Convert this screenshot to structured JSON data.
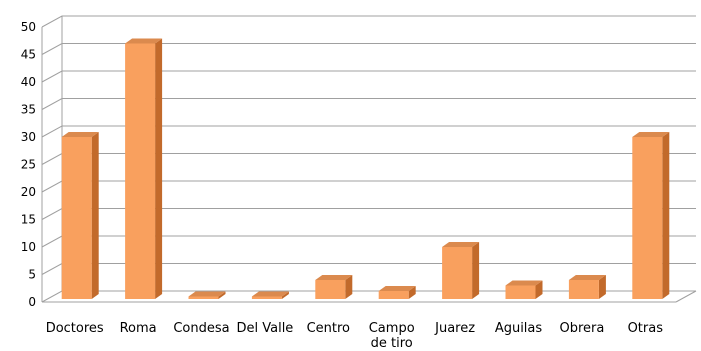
{
  "chart_data": {
    "type": "bar",
    "title": "",
    "xlabel": "",
    "ylabel": "",
    "ylim": [
      0,
      50
    ],
    "yticks": [
      0,
      5,
      10,
      15,
      20,
      25,
      30,
      35,
      40,
      45,
      50
    ],
    "grid": true,
    "legend": "none",
    "style": "3d",
    "categories": [
      [
        "Doctores"
      ],
      [
        "Roma"
      ],
      [
        "Condesa"
      ],
      [
        "Del Valle"
      ],
      [
        "Centro"
      ],
      [
        "Campo",
        "de tiro"
      ],
      [
        "Juarez"
      ],
      [
        "Aguilas"
      ],
      [
        "Obrera"
      ],
      [
        "Otras"
      ]
    ],
    "values": [
      30,
      47,
      1,
      1,
      4,
      2,
      10,
      3,
      4,
      30
    ]
  },
  "colors": {
    "bar_front": "#F9A05E",
    "bar_side": "#C26A2B",
    "bar_top": "#DB8A4E",
    "grid": "#A0A0A0"
  }
}
